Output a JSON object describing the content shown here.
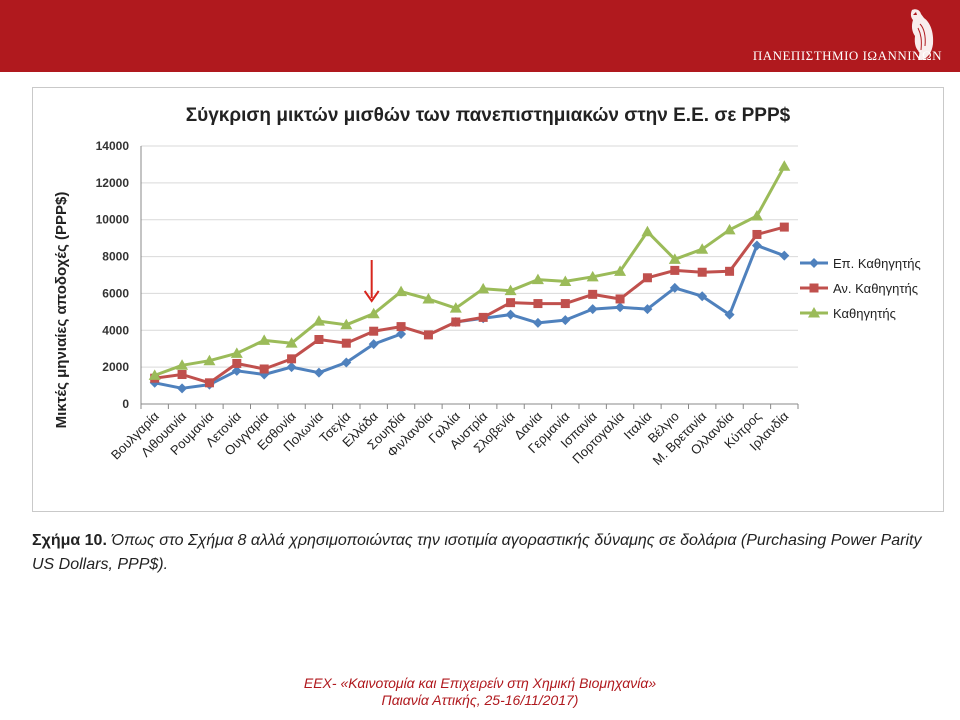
{
  "header": {
    "university": "ΠΑΝΕΠΙΣΤΗΜΙΟ ΙΩΑΝΝΙΝΩΝ",
    "logo_icon": "eagle-logo-icon",
    "banner_color": "#b0191e"
  },
  "chart_data": {
    "type": "line",
    "title": "Σύγκριση μικτών μισθών των πανεπιστημιακών στην Ε.Ε. σε PPP$",
    "ylabel": "Μικτές μηνιαίες αποδοχές (PPP$)",
    "xlabel": "",
    "ylim": [
      0,
      14000
    ],
    "yticks": [
      0,
      2000,
      4000,
      6000,
      8000,
      10000,
      12000,
      14000
    ],
    "grid": true,
    "legend_position": "right",
    "categories": [
      "Βουλγαρία",
      "Λιθουανία",
      "Ρουμανία",
      "Λετονία",
      "Ουγγαρία",
      "Εσθονία",
      "Πολωνία",
      "Τσεχία",
      "Ελλάδα",
      "Σουηδία",
      "Φινλανδία",
      "Γαλλία",
      "Αυστρία",
      "Σλοβενία",
      "Δανία",
      "Γερμανία",
      "Ισπανία",
      "Πορτογαλία",
      "Ιταλία",
      "Βέλγιο",
      "Μ. Βρετανία",
      "Ολλανδία",
      "Κύπρος",
      "Ιρλανδία"
    ],
    "highlight": {
      "category": "Ελλάδα",
      "marker": "down-arrow",
      "color": "#d7261e"
    },
    "series": [
      {
        "name": "Επ. Καθηγητής",
        "color": "#4f81bd",
        "marker": "diamond",
        "values": [
          1150,
          850,
          1050,
          1800,
          1600,
          2000,
          1700,
          2250,
          3250,
          3800,
          null,
          4450,
          4650,
          4850,
          4400,
          4550,
          5150,
          5250,
          5150,
          6300,
          5850,
          4850,
          8600,
          8050
        ]
      },
      {
        "name": "Αν. Καθηγητής",
        "color": "#c0504d",
        "marker": "square",
        "values": [
          1400,
          1600,
          1150,
          2200,
          1900,
          2450,
          3500,
          3300,
          3950,
          4200,
          3750,
          4450,
          4700,
          5500,
          5450,
          5450,
          5950,
          5700,
          6850,
          7250,
          7150,
          7200,
          9200,
          9600
        ]
      },
      {
        "name": "Καθηγητής",
        "color": "#9bbb59",
        "marker": "triangle",
        "values": [
          1550,
          2100,
          2350,
          2750,
          3450,
          3300,
          4500,
          4300,
          4900,
          6100,
          5700,
          5200,
          6250,
          6150,
          6750,
          6650,
          6900,
          7200,
          9350,
          7850,
          8400,
          9450,
          10200,
          12900
        ]
      }
    ]
  },
  "caption": {
    "label": "Σχήμα 10.",
    "text": "Όπως στο Σχήμα 8 αλλά χρησιμοποιώντας την ισοτιμία αγοραστικής δύναμης σε δολάρια (Purchasing Power Parity US Dollars, PPP$)."
  },
  "footer": {
    "line1": "ΕΕΧ- «Καινοτομία και Επιχειρείν στη Χημική Βιομηχανία»",
    "line2": "Παιανία Αττικής, 25-16/11/2017)"
  }
}
